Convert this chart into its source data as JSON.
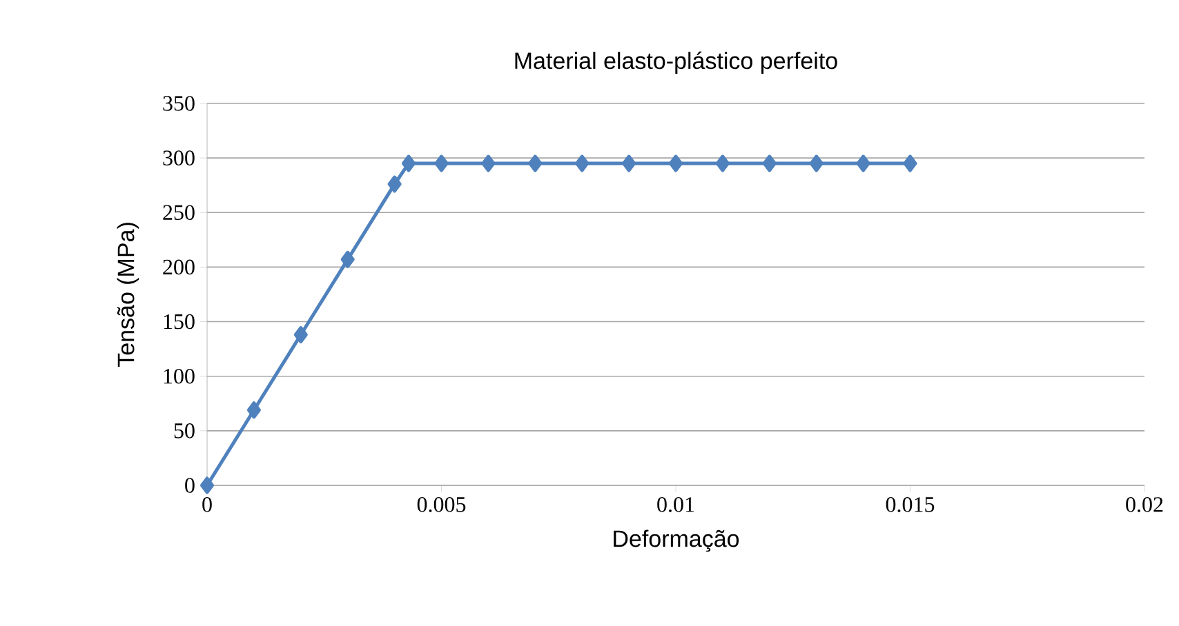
{
  "chart_data": {
    "type": "line",
    "title": "Material elasto-plástico perfeito",
    "xlabel": "Deformação",
    "ylabel": "Tensão (MPa)",
    "x": [
      0,
      0.001,
      0.002,
      0.003,
      0.004,
      0.0043,
      0.005,
      0.006,
      0.007,
      0.008,
      0.009,
      0.01,
      0.011,
      0.012,
      0.013,
      0.014,
      0.015
    ],
    "series": [
      {
        "color": "#4f81bd",
        "values": [
          0,
          69,
          138,
          207,
          276,
          295,
          295,
          295,
          295,
          295,
          295,
          295,
          295,
          295,
          295,
          295,
          295
        ]
      }
    ],
    "xlim": [
      0,
      0.02
    ],
    "xticks": [
      0,
      0.005,
      0.01,
      0.015,
      0.02
    ],
    "ylim": [
      0,
      350
    ],
    "yticks": [
      0,
      50,
      100,
      150,
      200,
      250,
      300,
      350
    ],
    "grid": "y",
    "marker": "diamond",
    "line_style": "solid"
  }
}
